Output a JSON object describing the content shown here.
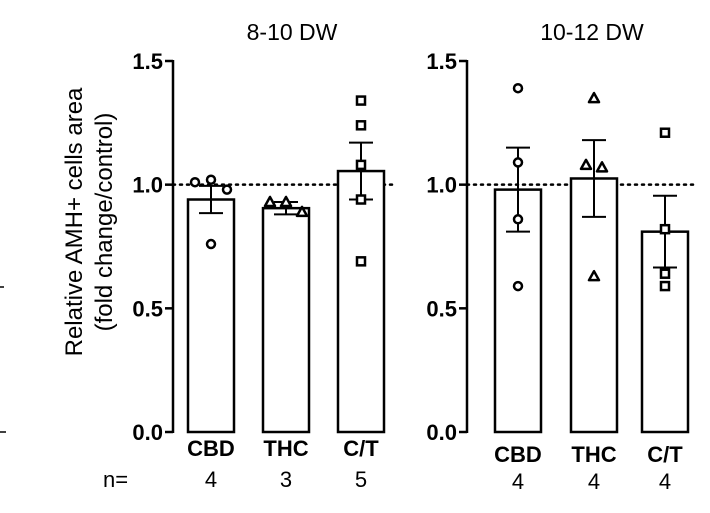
{
  "figure": {
    "ylabel_line1": "Relative AMH+ cells area",
    "ylabel_line2": "(fold change/control)",
    "n_label": "n="
  },
  "chart_data": [
    {
      "type": "bar",
      "title": "8-10 DW",
      "xlabel": "",
      "ylabel": "Relative AMH+ cells area (fold change/control)",
      "ylim": [
        0,
        1.5
      ],
      "yticks": [
        0,
        0.5,
        1.0,
        1.5
      ],
      "ytick_labels": [
        "0.0",
        "0.5",
        "1.0",
        "1.5"
      ],
      "reference_line": 1.0,
      "categories": [
        "CBD",
        "THC",
        "C/T"
      ],
      "n": [
        "4",
        "3",
        "5"
      ],
      "values": [
        0.94,
        0.905,
        1.055
      ],
      "sem": [
        0.055,
        0.025,
        0.115
      ],
      "markers": [
        "circle",
        "triangle",
        "square"
      ],
      "points": [
        [
          1.01,
          1.02,
          0.98,
          0.76
        ],
        [
          0.93,
          0.93,
          0.89
        ],
        [
          1.34,
          1.24,
          1.08,
          0.94,
          0.69
        ]
      ]
    },
    {
      "type": "bar",
      "title": "10-12 DW",
      "xlabel": "",
      "ylabel": "",
      "ylim": [
        0,
        1.5
      ],
      "yticks": [
        0,
        0.5,
        1.0,
        1.5
      ],
      "ytick_labels": [
        "0.0",
        "0.5",
        "1.0",
        "1.5"
      ],
      "reference_line": 1.0,
      "categories": [
        "CBD",
        "THC",
        "C/T"
      ],
      "n": [
        "4",
        "4",
        "4"
      ],
      "values": [
        0.98,
        1.025,
        0.81
      ],
      "sem": [
        0.17,
        0.155,
        0.145
      ],
      "markers": [
        "circle",
        "triangle",
        "square"
      ],
      "points": [
        [
          1.39,
          1.09,
          0.86,
          0.59
        ],
        [
          1.35,
          1.08,
          1.07,
          0.63
        ],
        [
          1.21,
          0.82,
          0.64,
          0.59
        ]
      ]
    }
  ]
}
